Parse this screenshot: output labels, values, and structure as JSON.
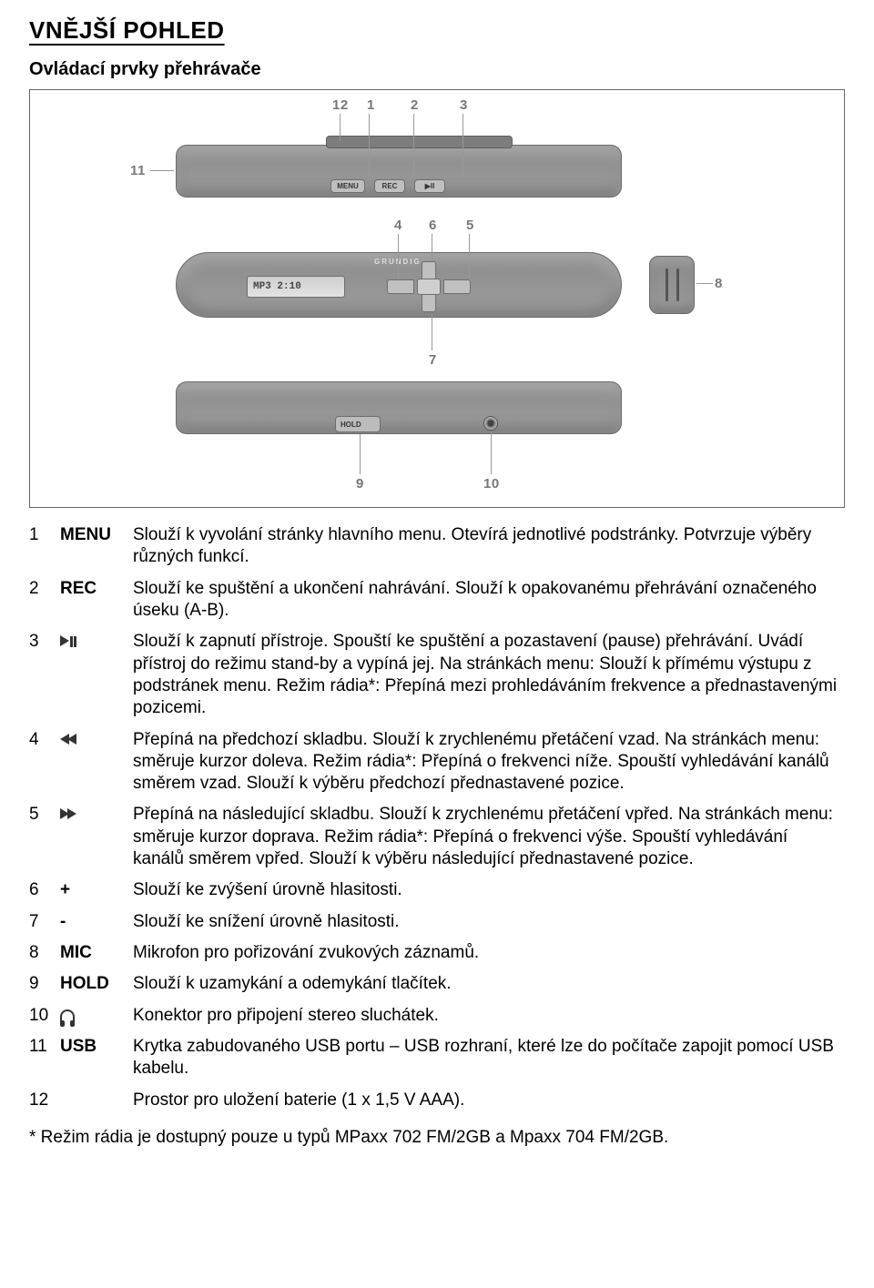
{
  "title": "VNĚJŠÍ POHLED",
  "subtitle": "Ovládací prvky přehrávače",
  "diagram": {
    "callouts": [
      "1",
      "2",
      "3",
      "4",
      "5",
      "6",
      "7",
      "8",
      "9",
      "10",
      "11",
      "12"
    ],
    "button_labels": {
      "menu": "MENU",
      "rec": "REC",
      "play": "▶II",
      "hold": "HOLD"
    },
    "lcd_text": "MP3 2:10",
    "brand": "GRUNDIG",
    "colors": {
      "body": "#8c8c8c",
      "border": "#6b6b6b",
      "button": "#bfbfbf",
      "text": "#777"
    }
  },
  "rows": [
    {
      "n": "1",
      "k": "MENU",
      "d": "Slouží k vyvolání stránky hlavního menu. Otevírá jednotlivé podstránky. Potvrzuje výběry různých funkcí."
    },
    {
      "n": "2",
      "k": "REC",
      "d": "Slouží ke spuštění a ukončení nahrávání. Slouží k opakovanému přehrávání označeného úseku (A-B)."
    },
    {
      "n": "3",
      "k": "__PLAYPAUSE__",
      "d": "Slouží k zapnutí přístroje. Spouští ke spuštění a pozastavení (pause) přehrávání. Uvádí přístroj do režimu stand-by a vypíná jej. Na stránkách menu: Slouží k přímému výstupu z podstránek menu. Režim rádia*: Přepíná mezi prohledáváním frekvence a přednastavenými pozicemi."
    },
    {
      "n": "4",
      "k": "__PREV__",
      "d": "Přepíná na předchozí skladbu. Slouží k zrychlenému přetáčení vzad. Na stránkách menu: směruje kurzor doleva. Režim rádia*: Přepíná o frekvenci níže. Spouští vyhledávání kanálů směrem vzad. Slouží k výběru předchozí přednastavené pozice."
    },
    {
      "n": "5",
      "k": "__NEXT__",
      "d": "Přepíná na následující skladbu. Slouží k zrychlenému přetáčení vpřed. Na stránkách menu: směruje kurzor doprava. Režim rádia*: Přepíná o frekvenci výše. Spouští vyhledávání kanálů směrem vpřed. Slouží k výběru následující přednastavené pozice."
    },
    {
      "n": "6",
      "k": "+",
      "d": "Slouží ke zvýšení úrovně hlasitosti."
    },
    {
      "n": "7",
      "k": "-",
      "d": "Slouží ke snížení úrovně hlasitosti."
    },
    {
      "n": "8",
      "k": "MIC",
      "d": "Mikrofon pro pořizování zvukových záznamů."
    },
    {
      "n": "9",
      "k": "HOLD",
      "d": "Slouží k uzamykání a odemykání tlačítek."
    },
    {
      "n": "10",
      "k": "__HP__",
      "d": "Konektor pro připojení stereo sluchátek."
    },
    {
      "n": "11",
      "k": "USB",
      "d": "Krytka zabudovaného USB portu – USB rozhraní, které lze do počítače zapojit pomocí USB kabelu."
    },
    {
      "n": "12",
      "k": "",
      "d": "Prostor pro uložení baterie (1 x 1,5 V AAA)."
    }
  ],
  "footnote": "* Režim rádia je dostupný pouze u typů MPaxx 702 FM/2GB a Mpaxx 704 FM/2GB."
}
